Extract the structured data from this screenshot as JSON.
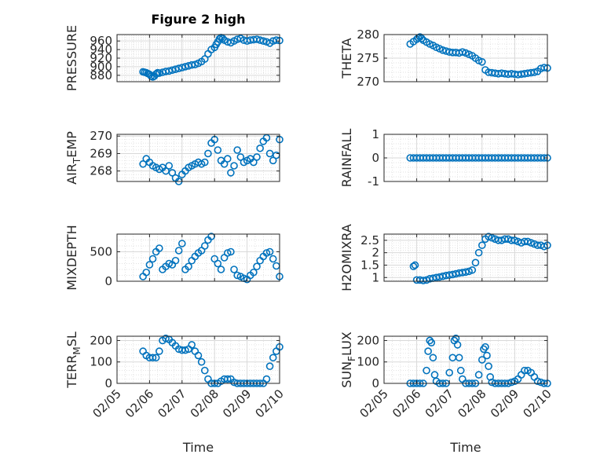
{
  "colors": {
    "marker": "#0072BD",
    "axis": "#262626",
    "grid": "#d9d9d9"
  },
  "chart_data": [
    {
      "type": "scatter",
      "marker": "open-circle",
      "title": "Figure 2 high",
      "ylabel": "PRESSURE",
      "xlabel": "",
      "xlim": [
        0,
        5
      ],
      "ylim": [
        865,
        975
      ],
      "yticks": [
        880,
        900,
        920,
        940,
        960
      ],
      "xticks": [
        0,
        1,
        2,
        3,
        4,
        5
      ],
      "xticklabels": [],
      "grid": true,
      "x": [
        0.8,
        0.85,
        0.9,
        0.95,
        1.0,
        1.05,
        1.1,
        1.15,
        1.2,
        1.25,
        1.3,
        1.4,
        1.5,
        1.6,
        1.7,
        1.8,
        1.9,
        2.0,
        2.1,
        2.2,
        2.3,
        2.4,
        2.5,
        2.6,
        2.7,
        2.8,
        2.9,
        3.0,
        3.05,
        3.1,
        3.15,
        3.2,
        3.25,
        3.3,
        3.4,
        3.5,
        3.6,
        3.7,
        3.8,
        3.9,
        4.0,
        4.1,
        4.2,
        4.3,
        4.4,
        4.5,
        4.6,
        4.7,
        4.8,
        4.9,
        5.0
      ],
      "y": [
        888,
        887,
        886,
        884,
        882,
        878,
        876,
        878,
        883,
        886,
        885,
        887,
        889,
        890,
        892,
        894,
        896,
        898,
        900,
        902,
        904,
        905,
        908,
        912,
        918,
        930,
        940,
        945,
        952,
        958,
        965,
        968,
        966,
        962,
        958,
        956,
        960,
        964,
        966,
        962,
        960,
        962,
        963,
        964,
        962,
        960,
        958,
        955,
        960,
        962,
        961
      ]
    },
    {
      "type": "scatter",
      "marker": "open-circle",
      "title": "",
      "ylabel": "THETA",
      "xlabel": "",
      "xlim": [
        0,
        5
      ],
      "ylim": [
        270,
        280
      ],
      "yticks": [
        270,
        275,
        280
      ],
      "xticks": [
        0,
        1,
        2,
        3,
        4,
        5
      ],
      "xticklabels": [],
      "grid": true,
      "x": [
        0.8,
        0.9,
        1.0,
        1.05,
        1.1,
        1.15,
        1.2,
        1.3,
        1.4,
        1.5,
        1.6,
        1.7,
        1.8,
        1.9,
        2.0,
        2.1,
        2.2,
        2.3,
        2.4,
        2.5,
        2.6,
        2.7,
        2.8,
        2.9,
        3.0,
        3.1,
        3.2,
        3.3,
        3.4,
        3.5,
        3.6,
        3.7,
        3.8,
        3.9,
        4.0,
        4.1,
        4.2,
        4.3,
        4.4,
        4.5,
        4.6,
        4.7,
        4.8,
        4.9,
        5.0
      ],
      "y": [
        278,
        278.5,
        279,
        279.3,
        279.5,
        279.2,
        278.8,
        278.4,
        278,
        277.7,
        277.3,
        277,
        276.7,
        276.5,
        276.3,
        276.2,
        276.2,
        276.1,
        276.3,
        276.1,
        275.8,
        275.5,
        275,
        274.5,
        274.2,
        272.5,
        272,
        271.9,
        271.8,
        271.7,
        271.8,
        271.7,
        271.6,
        271.7,
        271.6,
        271.5,
        271.6,
        271.7,
        271.8,
        271.9,
        272,
        272.2,
        272.8,
        273,
        272.9
      ]
    },
    {
      "type": "scatter",
      "marker": "open-circle",
      "title": "",
      "ylabel": "AIR_TEMP",
      "ylabel_main": "AIR",
      "ylabel_sub": "T",
      "ylabel_rest": "EMP",
      "xlabel": "",
      "xlim": [
        0,
        5
      ],
      "ylim": [
        267.4,
        270.1
      ],
      "yticks": [
        268,
        269,
        270
      ],
      "xticks": [
        0,
        1,
        2,
        3,
        4,
        5
      ],
      "xticklabels": [],
      "grid": true,
      "x": [
        0.8,
        0.9,
        1.0,
        1.1,
        1.2,
        1.3,
        1.4,
        1.5,
        1.6,
        1.7,
        1.8,
        1.9,
        2.0,
        2.1,
        2.2,
        2.3,
        2.4,
        2.5,
        2.6,
        2.7,
        2.8,
        2.9,
        3.0,
        3.1,
        3.2,
        3.3,
        3.4,
        3.5,
        3.6,
        3.7,
        3.8,
        3.9,
        4.0,
        4.1,
        4.2,
        4.3,
        4.4,
        4.5,
        4.6,
        4.7,
        4.8,
        4.9,
        5.0
      ],
      "y": [
        268.4,
        268.7,
        268.5,
        268.3,
        268.2,
        268.1,
        268.2,
        268.0,
        268.3,
        267.9,
        267.6,
        267.4,
        267.8,
        268.0,
        268.2,
        268.3,
        268.4,
        268.5,
        268.4,
        268.5,
        269.0,
        269.6,
        269.8,
        269.2,
        268.6,
        268.4,
        268.7,
        267.9,
        268.3,
        269.2,
        268.8,
        268.5,
        268.6,
        268.7,
        268.5,
        268.8,
        269.3,
        269.7,
        269.9,
        269.0,
        268.6,
        268.9,
        269.8
      ]
    },
    {
      "type": "scatter",
      "marker": "open-circle",
      "title": "",
      "ylabel": "RAINFALL",
      "xlabel": "",
      "xlim": [
        0,
        5
      ],
      "ylim": [
        -1,
        1
      ],
      "yticks": [
        -1,
        0,
        1
      ],
      "xticks": [
        0,
        1,
        2,
        3,
        4,
        5
      ],
      "xticklabels": [],
      "grid": true,
      "x": [
        0.8,
        0.9,
        1.0,
        1.1,
        1.2,
        1.3,
        1.4,
        1.5,
        1.6,
        1.7,
        1.8,
        1.9,
        2.0,
        2.1,
        2.2,
        2.3,
        2.4,
        2.5,
        2.6,
        2.7,
        2.8,
        2.9,
        3.0,
        3.1,
        3.2,
        3.3,
        3.4,
        3.5,
        3.6,
        3.7,
        3.8,
        3.9,
        4.0,
        4.1,
        4.2,
        4.3,
        4.4,
        4.5,
        4.6,
        4.7,
        4.8,
        4.9,
        5.0
      ],
      "y": [
        0,
        0,
        0,
        0,
        0,
        0,
        0,
        0,
        0,
        0,
        0,
        0,
        0,
        0,
        0,
        0,
        0,
        0,
        0,
        0,
        0,
        0,
        0,
        0,
        0,
        0,
        0,
        0,
        0,
        0,
        0,
        0,
        0,
        0,
        0,
        0,
        0,
        0,
        0,
        0,
        0,
        0,
        0
      ]
    },
    {
      "type": "scatter",
      "marker": "open-circle",
      "title": "",
      "ylabel": "MIXDEPTH",
      "xlabel": "",
      "xlim": [
        0,
        5
      ],
      "ylim": [
        0,
        800
      ],
      "yticks": [
        0,
        500
      ],
      "xticks": [
        0,
        1,
        2,
        3,
        4,
        5
      ],
      "xticklabels": [],
      "grid": true,
      "x": [
        0.8,
        0.9,
        1.0,
        1.1,
        1.2,
        1.3,
        1.4,
        1.5,
        1.6,
        1.7,
        1.8,
        1.9,
        2.0,
        2.1,
        2.2,
        2.3,
        2.4,
        2.5,
        2.6,
        2.7,
        2.8,
        2.9,
        3.0,
        3.1,
        3.2,
        3.3,
        3.4,
        3.5,
        3.6,
        3.7,
        3.8,
        3.9,
        4.0,
        4.1,
        4.2,
        4.3,
        4.4,
        4.5,
        4.6,
        4.7,
        4.8,
        4.9,
        5.0
      ],
      "y": [
        80,
        150,
        280,
        380,
        500,
        560,
        200,
        250,
        300,
        280,
        350,
        520,
        640,
        200,
        250,
        350,
        420,
        480,
        520,
        600,
        700,
        760,
        380,
        300,
        200,
        400,
        480,
        500,
        200,
        100,
        80,
        50,
        30,
        100,
        150,
        250,
        350,
        420,
        480,
        500,
        380,
        260,
        80
      ]
    },
    {
      "type": "scatter",
      "marker": "open-circle",
      "title": "",
      "ylabel": "H2OMIXRA",
      "xlabel": "",
      "xlim": [
        0,
        5
      ],
      "ylim": [
        0.85,
        2.75
      ],
      "yticks": [
        1,
        1.5,
        2,
        2.5
      ],
      "xticks": [
        0,
        1,
        2,
        3,
        4,
        5
      ],
      "xticklabels": [],
      "grid": true,
      "x": [
        0.9,
        0.95,
        1.0,
        1.1,
        1.2,
        1.3,
        1.4,
        1.5,
        1.6,
        1.7,
        1.8,
        1.9,
        2.0,
        2.1,
        2.2,
        2.3,
        2.4,
        2.5,
        2.6,
        2.7,
        2.8,
        2.9,
        3.0,
        3.1,
        3.2,
        3.3,
        3.4,
        3.5,
        3.6,
        3.7,
        3.8,
        3.9,
        4.0,
        4.1,
        4.2,
        4.3,
        4.4,
        4.5,
        4.6,
        4.7,
        4.8,
        4.9,
        5.0
      ],
      "y": [
        1.45,
        1.5,
        0.9,
        0.9,
        0.88,
        0.9,
        0.95,
        0.97,
        1.0,
        1.02,
        1.05,
        1.08,
        1.1,
        1.12,
        1.15,
        1.18,
        1.2,
        1.22,
        1.25,
        1.3,
        1.6,
        2.0,
        2.3,
        2.55,
        2.65,
        2.6,
        2.55,
        2.5,
        2.5,
        2.55,
        2.55,
        2.5,
        2.5,
        2.45,
        2.4,
        2.45,
        2.45,
        2.4,
        2.35,
        2.3,
        2.3,
        2.25,
        2.3
      ]
    },
    {
      "type": "scatter",
      "marker": "open-circle",
      "title": "",
      "ylabel": "TERR_MSL",
      "ylabel_main": "TERR",
      "ylabel_sub": "M",
      "ylabel_rest": "SL",
      "xlabel": "Time",
      "xlim": [
        0,
        5
      ],
      "ylim": [
        0,
        220
      ],
      "yticks": [
        0,
        100,
        200
      ],
      "xticks": [
        0,
        1,
        2,
        3,
        4,
        5
      ],
      "xticklabels": [
        "02/05",
        "02/06",
        "02/07",
        "02/08",
        "02/09",
        "02/10"
      ],
      "grid": true,
      "x": [
        0.8,
        0.9,
        1.0,
        1.1,
        1.2,
        1.3,
        1.4,
        1.5,
        1.6,
        1.7,
        1.8,
        1.9,
        2.0,
        2.1,
        2.2,
        2.3,
        2.4,
        2.5,
        2.6,
        2.7,
        2.8,
        2.9,
        3.0,
        3.1,
        3.2,
        3.3,
        3.4,
        3.5,
        3.6,
        3.7,
        3.8,
        3.9,
        4.0,
        4.1,
        4.2,
        4.3,
        4.4,
        4.5,
        4.6,
        4.7,
        4.8,
        4.9,
        5.0
      ],
      "y": [
        150,
        130,
        120,
        120,
        120,
        150,
        200,
        210,
        205,
        190,
        175,
        160,
        155,
        155,
        160,
        180,
        150,
        130,
        100,
        60,
        20,
        0,
        0,
        0,
        10,
        20,
        20,
        20,
        5,
        0,
        0,
        0,
        0,
        0,
        0,
        0,
        0,
        0,
        20,
        80,
        120,
        150,
        170
      ]
    },
    {
      "type": "scatter",
      "marker": "open-circle",
      "title": "",
      "ylabel": "SUN_FLUX",
      "ylabel_main": "SUN",
      "ylabel_sub": "F",
      "ylabel_rest": "LUX",
      "xlabel": "Time",
      "xlim": [
        0,
        5
      ],
      "ylim": [
        0,
        220
      ],
      "yticks": [
        0,
        100,
        200
      ],
      "xticks": [
        0,
        1,
        2,
        3,
        4,
        5
      ],
      "xticklabels": [
        "02/05",
        "02/06",
        "02/07",
        "02/08",
        "02/09",
        "02/10"
      ],
      "grid": true,
      "x": [
        0.8,
        0.9,
        1.0,
        1.1,
        1.2,
        1.3,
        1.35,
        1.4,
        1.45,
        1.5,
        1.55,
        1.6,
        1.7,
        1.8,
        1.9,
        2.0,
        2.1,
        2.15,
        2.2,
        2.25,
        2.3,
        2.35,
        2.4,
        2.5,
        2.6,
        2.7,
        2.8,
        2.9,
        3.0,
        3.05,
        3.1,
        3.15,
        3.2,
        3.25,
        3.3,
        3.4,
        3.5,
        3.6,
        3.7,
        3.8,
        3.9,
        4.0,
        4.1,
        4.2,
        4.3,
        4.4,
        4.5,
        4.6,
        4.7,
        4.8,
        4.9,
        5.0
      ],
      "y": [
        0,
        0,
        0,
        0,
        0,
        60,
        150,
        200,
        190,
        120,
        40,
        10,
        0,
        0,
        0,
        50,
        120,
        200,
        210,
        180,
        120,
        60,
        20,
        0,
        0,
        0,
        0,
        40,
        110,
        160,
        170,
        130,
        80,
        30,
        5,
        0,
        0,
        0,
        0,
        0,
        5,
        10,
        20,
        40,
        60,
        60,
        50,
        30,
        10,
        5,
        0,
        0
      ]
    }
  ]
}
